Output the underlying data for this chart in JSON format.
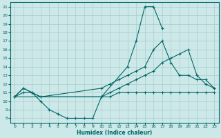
{
  "xlabel": "Humidex (Indice chaleur)",
  "background_color": "#cce8e8",
  "grid_color": "#aacccc",
  "line_color": "#006666",
  "xlim": [
    -0.5,
    23.5
  ],
  "ylim": [
    7.5,
    21.5
  ],
  "xticks": [
    0,
    1,
    2,
    3,
    4,
    5,
    6,
    7,
    8,
    9,
    10,
    11,
    12,
    13,
    14,
    15,
    16,
    17,
    18,
    19,
    20,
    21,
    22,
    23
  ],
  "yticks": [
    8,
    9,
    10,
    11,
    12,
    13,
    14,
    15,
    16,
    17,
    18,
    19,
    20,
    21
  ],
  "line1_x": [
    0,
    1,
    2,
    3,
    4,
    5,
    6,
    7,
    8,
    9,
    10,
    13,
    14,
    15,
    16,
    17
  ],
  "line1_y": [
    10.5,
    11.5,
    11.0,
    10.0,
    9.0,
    8.5,
    8.0,
    8.0,
    8.0,
    8.0,
    10.5,
    14.0,
    17.0,
    21.0,
    21.0,
    18.5
  ],
  "line2_x": [
    0,
    1,
    2,
    3,
    10,
    11,
    12,
    13,
    14,
    15,
    16,
    17,
    18,
    19,
    20,
    21,
    22,
    23
  ],
  "line2_y": [
    10.5,
    11.5,
    11.0,
    10.5,
    11.5,
    12.0,
    12.5,
    13.0,
    13.5,
    14.0,
    16.0,
    17.0,
    14.5,
    13.0,
    13.0,
    12.5,
    12.5,
    11.5
  ],
  "line3_x": [
    0,
    10,
    11,
    12,
    13,
    14,
    15,
    16,
    17,
    18,
    19,
    20,
    21,
    22,
    23
  ],
  "line3_y": [
    10.5,
    10.5,
    11.0,
    11.5,
    12.0,
    12.5,
    13.0,
    13.5,
    14.5,
    15.0,
    15.5,
    16.0,
    13.0,
    12.0,
    11.5
  ],
  "line4_x": [
    0,
    1,
    2,
    3,
    10,
    11,
    12,
    13,
    14,
    15,
    16,
    17,
    18,
    19,
    20,
    21,
    22,
    23
  ],
  "line4_y": [
    10.5,
    11.0,
    11.0,
    10.5,
    10.5,
    10.5,
    11.0,
    11.0,
    11.0,
    11.0,
    11.0,
    11.0,
    11.0,
    11.0,
    11.0,
    11.0,
    11.0,
    11.0
  ]
}
